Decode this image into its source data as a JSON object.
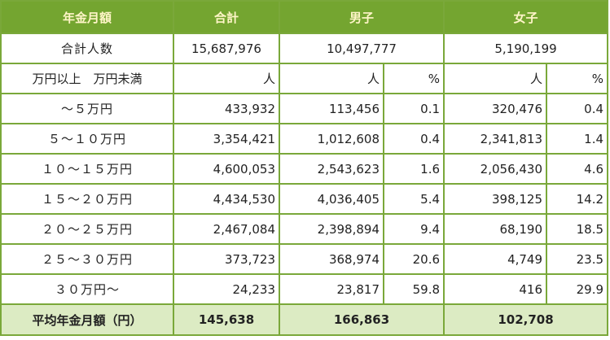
{
  "header": {
    "col_label": "年金月額",
    "col_total": "合計",
    "col_male": "男子",
    "col_female": "女子"
  },
  "totals_row": {
    "label": "合計人数",
    "total": "15,687,976",
    "male": "10,497,777",
    "female": "5,190,199"
  },
  "units_row": {
    "label": "万円以上　万円未満",
    "total_unit": "人",
    "male_unit": "人",
    "male_pct": "%",
    "female_unit": "人",
    "female_pct": "%"
  },
  "rows": [
    {
      "label": "～５万円",
      "total": "433,932",
      "male": "113,456",
      "male_pct": "0.1",
      "female": "320,476",
      "female_pct": "0.4"
    },
    {
      "label": "５～１０万円",
      "total": "3,354,421",
      "male": "1,012,608",
      "male_pct": "0.4",
      "female": "2,341,813",
      "female_pct": "1.4"
    },
    {
      "label": "１０～１５万円",
      "total": "4,600,053",
      "male": "2,543,623",
      "male_pct": "1.6",
      "female": "2,056,430",
      "female_pct": "4.6"
    },
    {
      "label": "１５～２０万円",
      "total": "4,434,530",
      "male": "4,036,405",
      "male_pct": "5.4",
      "female": "398,125",
      "female_pct": "14.2"
    },
    {
      "label": "２０～２５万円",
      "total": "2,467,084",
      "male": "2,398,894",
      "male_pct": "9.4",
      "female": "68,190",
      "female_pct": "18.5"
    },
    {
      "label": "２５～３０万円",
      "total": "373,723",
      "male": "368,974",
      "male_pct": "20.6",
      "female": "4,749",
      "female_pct": "23.5"
    },
    {
      "label": "３０万円～",
      "total": "24,233",
      "male": "23,817",
      "male_pct": "59.8",
      "female": "416",
      "female_pct": "29.9"
    }
  ],
  "footer": {
    "label": "平均年金月額（円）",
    "total": "145,638",
    "male": "166,863",
    "female": "102,708"
  },
  "colors": {
    "header_bg": "#74a530",
    "header_text": "#fff5c8",
    "border": "#7aa83a",
    "footer_bg": "#dcebc3"
  }
}
